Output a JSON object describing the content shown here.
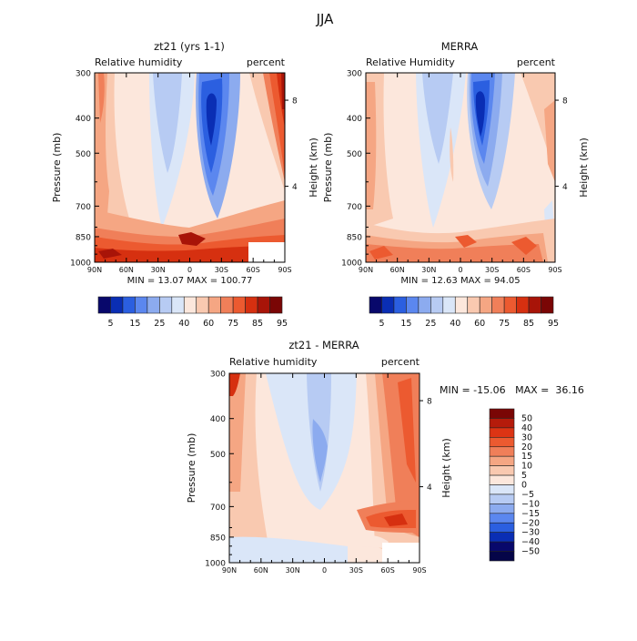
{
  "page_title": "JJA",
  "chart_data": [
    {
      "type": "heatmap",
      "id": "model",
      "title": "zt21 (yrs 1-1)",
      "left_label": "Relative humidity",
      "right_label": "percent",
      "ylabel": "Pressure (mb)",
      "ylabel_right": "Height (km)",
      "y_ticks": [
        "300",
        "400",
        "500",
        "700",
        "850",
        "1000"
      ],
      "y_tick_values": [
        300,
        400,
        500,
        700,
        850,
        1000
      ],
      "height_ticks": [
        "8",
        "4"
      ],
      "height_tick_pressure": [
        357,
        617
      ],
      "x_ticks": [
        "90N",
        "60N",
        "30N",
        "0",
        "30S",
        "60S",
        "90S"
      ],
      "xlim": [
        90,
        -90
      ],
      "ylim": [
        300,
        1000
      ],
      "stats": "MIN =  13.07   MAX = 100.77",
      "colorbar": {
        "orientation": "horizontal",
        "levels": [
          "5",
          "15",
          "25",
          "40",
          "60",
          "75",
          "85",
          "95"
        ],
        "colors": [
          "#08086b",
          "#0a2eb4",
          "#2b5fe0",
          "#5b87ef",
          "#8cabef",
          "#b7cbf3",
          "#dae6f8",
          "#fce7dc",
          "#f9c9b0",
          "#f5a683",
          "#f07f59",
          "#ec5a30",
          "#d63010",
          "#a81408",
          "#7a0605"
        ]
      }
    },
    {
      "type": "heatmap",
      "id": "merra",
      "title": "MERRA",
      "left_label": "Relative Humidity",
      "right_label": "percent",
      "ylabel": "Pressure (mb)",
      "ylabel_right": "Height (km)",
      "y_ticks": [
        "300",
        "400",
        "500",
        "700",
        "850",
        "1000"
      ],
      "y_tick_values": [
        300,
        400,
        500,
        700,
        850,
        1000
      ],
      "height_ticks": [
        "8",
        "4"
      ],
      "height_tick_pressure": [
        357,
        617
      ],
      "x_ticks": [
        "90N",
        "60N",
        "30N",
        "0",
        "30S",
        "60S",
        "90S"
      ],
      "xlim": [
        90,
        -90
      ],
      "ylim": [
        300,
        1000
      ],
      "stats": "MIN =  12.63   MAX =  94.05",
      "colorbar": {
        "orientation": "horizontal",
        "levels": [
          "5",
          "15",
          "25",
          "40",
          "60",
          "75",
          "85",
          "95"
        ],
        "colors": [
          "#08086b",
          "#0a2eb4",
          "#2b5fe0",
          "#5b87ef",
          "#8cabef",
          "#b7cbf3",
          "#dae6f8",
          "#fce7dc",
          "#f9c9b0",
          "#f5a683",
          "#f07f59",
          "#ec5a30",
          "#d63010",
          "#a81408",
          "#7a0605"
        ]
      }
    },
    {
      "type": "heatmap",
      "id": "diff",
      "title": "zt21 - MERRA",
      "left_label": "Relative humidity",
      "right_label": "percent",
      "ylabel": "Pressure (mb)",
      "ylabel_right": "Height (km)",
      "y_ticks": [
        "300",
        "400",
        "500",
        "700",
        "850",
        "1000"
      ],
      "y_tick_values": [
        300,
        400,
        500,
        700,
        850,
        1000
      ],
      "height_ticks": [
        "8",
        "4"
      ],
      "height_tick_pressure": [
        357,
        617
      ],
      "x_ticks": [
        "90N",
        "60N",
        "30N",
        "0",
        "30S",
        "60S",
        "90S"
      ],
      "xlim": [
        90,
        -90
      ],
      "ylim": [
        300,
        1000
      ],
      "stats": "MIN = -15.06   MAX =  36.16",
      "colorbar": {
        "orientation": "vertical",
        "levels": [
          "50",
          "40",
          "30",
          "20",
          "15",
          "10",
          "5",
          "0",
          "−5",
          "−10",
          "−15",
          "−20",
          "−30",
          "−40",
          "−50"
        ],
        "colors": [
          "#7a0605",
          "#b51b0b",
          "#dc3414",
          "#ec5a30",
          "#f07f59",
          "#f5a683",
          "#f9c9b0",
          "#fce7dc",
          "#dae6f8",
          "#b7cbf3",
          "#8cabef",
          "#5b87ef",
          "#2b5fe0",
          "#0a2eb4",
          "#08086b",
          "#050548"
        ]
      }
    }
  ]
}
